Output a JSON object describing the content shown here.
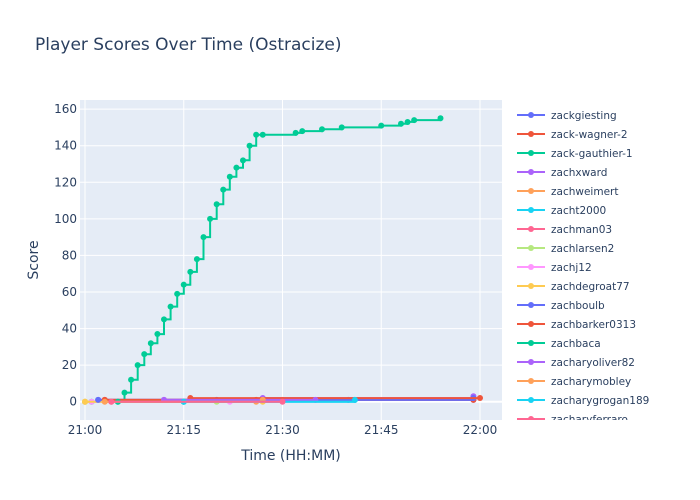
{
  "chart_data": {
    "type": "line",
    "title": "Player Scores Over Time (Ostracize)",
    "xlabel": "Time (HH:MM)",
    "ylabel": "Score",
    "xlim": [
      "21:00",
      "22:00"
    ],
    "ylim": [
      -10,
      165
    ],
    "x_ticks": [
      "21:00",
      "21:15",
      "21:30",
      "21:45",
      "22:00"
    ],
    "y_ticks": [
      0,
      20,
      40,
      60,
      80,
      100,
      120,
      140,
      160
    ],
    "grid": true,
    "legend_placement": "right",
    "series": [
      {
        "name": "zackgiesting",
        "color": "#636efa",
        "x": [
          "21:02",
          "21:20",
          "21:40",
          "21:59"
        ],
        "y": [
          1,
          1,
          1,
          1
        ]
      },
      {
        "name": "zack-wagner-2",
        "color": "#ef553b",
        "x": [
          "21:03",
          "21:16",
          "21:26",
          "21:59"
        ],
        "y": [
          1,
          1,
          1,
          1
        ]
      },
      {
        "name": "zack-gauthier-1",
        "color": "#00cc96",
        "x": [
          "21:01",
          "21:05",
          "21:06",
          "21:07",
          "21:08",
          "21:09",
          "21:10",
          "21:11",
          "21:12",
          "21:13",
          "21:14",
          "21:15",
          "21:16",
          "21:17",
          "21:18",
          "21:19",
          "21:20",
          "21:21",
          "21:22",
          "21:23",
          "21:24",
          "21:25",
          "21:26",
          "21:27",
          "21:32",
          "21:33",
          "21:36",
          "21:39",
          "21:45",
          "21:48",
          "21:49",
          "21:50",
          "21:54"
        ],
        "y": [
          0,
          0,
          5,
          12,
          20,
          26,
          32,
          37,
          45,
          52,
          59,
          64,
          71,
          78,
          90,
          100,
          108,
          116,
          123,
          128,
          132,
          140,
          146,
          146,
          147,
          148,
          149,
          150,
          151,
          152,
          153,
          154,
          155
        ]
      },
      {
        "name": "zachxward",
        "color": "#ab63fa",
        "x": [
          "21:12",
          "21:27",
          "21:59"
        ],
        "y": [
          1,
          2,
          3
        ]
      },
      {
        "name": "zachweimert",
        "color": "#ffa15a",
        "x": [
          "21:00",
          "21:26"
        ],
        "y": [
          0,
          0
        ]
      },
      {
        "name": "zacht2000",
        "color": "#19d3f3",
        "x": [
          "21:15",
          "21:41"
        ],
        "y": [
          0,
          1
        ]
      },
      {
        "name": "zachman03",
        "color": "#ff6692",
        "x": [
          "21:04",
          "21:30"
        ],
        "y": [
          0,
          1
        ]
      },
      {
        "name": "zachlarsen2",
        "color": "#b6e880",
        "x": [
          "21:00",
          "21:20"
        ],
        "y": [
          0,
          0
        ]
      },
      {
        "name": "zachj12",
        "color": "#ff97ff",
        "x": [
          "21:01",
          "21:22"
        ],
        "y": [
          0,
          0
        ]
      },
      {
        "name": "zachdegroat77",
        "color": "#fecb52",
        "x": [
          "21:00",
          "21:27"
        ],
        "y": [
          0,
          0
        ]
      },
      {
        "name": "zachboulb",
        "color": "#636efa",
        "x": [
          "21:02",
          "21:59"
        ],
        "y": [
          1,
          2
        ]
      },
      {
        "name": "zachbarker0313",
        "color": "#ef553b",
        "x": [
          "21:03",
          "21:16",
          "22:00"
        ],
        "y": [
          1,
          2,
          2
        ]
      },
      {
        "name": "zachbaca",
        "color": "#00cc96",
        "x": [
          "21:05",
          "21:15"
        ],
        "y": [
          0,
          0
        ]
      },
      {
        "name": "zacharyoliver82",
        "color": "#ab63fa",
        "x": [
          "21:12",
          "21:35"
        ],
        "y": [
          1,
          1
        ]
      },
      {
        "name": "zacharymobley",
        "color": "#ffa15a",
        "x": [
          "21:03",
          "21:27"
        ],
        "y": [
          0,
          1
        ]
      },
      {
        "name": "zacharygrogan189",
        "color": "#19d3f3",
        "x": [
          "21:15",
          "21:41"
        ],
        "y": [
          0,
          1
        ]
      },
      {
        "name": "zacharyferraro",
        "color": "#ff6692",
        "x": [
          "21:04",
          "21:30"
        ],
        "y": [
          0,
          0
        ]
      }
    ]
  }
}
